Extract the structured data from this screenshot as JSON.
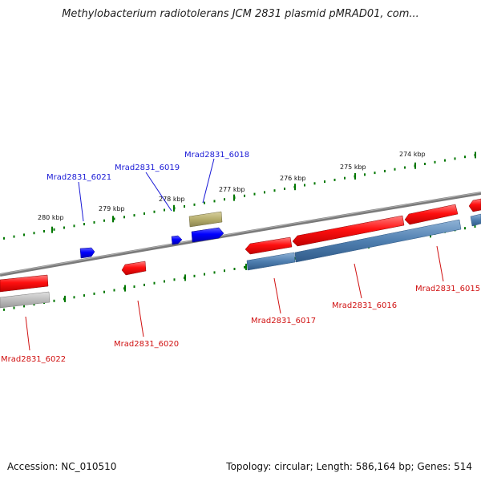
{
  "title": "Methylobacterium radiotolerans JCM 2831 plasmid pMRAD01, com...",
  "footer": {
    "accession": "Accession: NC_010510",
    "stats": "Topology: circular; Length: 586,164 bp; Genes: 514"
  },
  "ticks": [
    "280 kbp",
    "279 kbp",
    "278 kbp",
    "277 kbp",
    "276 kbp",
    "275 kbp",
    "274 kbp"
  ],
  "genes": [
    {
      "label": "Mrad2831_6021",
      "color": "blue"
    },
    {
      "label": "Mrad2831_6019",
      "color": "blue"
    },
    {
      "label": "Mrad2831_6018",
      "color": "blue"
    },
    {
      "label": "Mrad2831_6022",
      "color": "red"
    },
    {
      "label": "Mrad2831_6020",
      "color": "red"
    },
    {
      "label": "Mrad2831_6017",
      "color": "red"
    },
    {
      "label": "Mrad2831_6016",
      "color": "red"
    },
    {
      "label": "Mrad2831_6015",
      "color": "red"
    }
  ],
  "colors": {
    "forward_gene": "#ff0000",
    "reverse_gene": "#0000ff",
    "backbone": "#888888",
    "tick_marks": "#007700",
    "cds_steelblue": "#4f7fb0",
    "cds_gray": "#c0c0c0",
    "cds_olive": "#b8b070",
    "label_blue": "#1a1ad6",
    "label_red": "#d01010"
  }
}
